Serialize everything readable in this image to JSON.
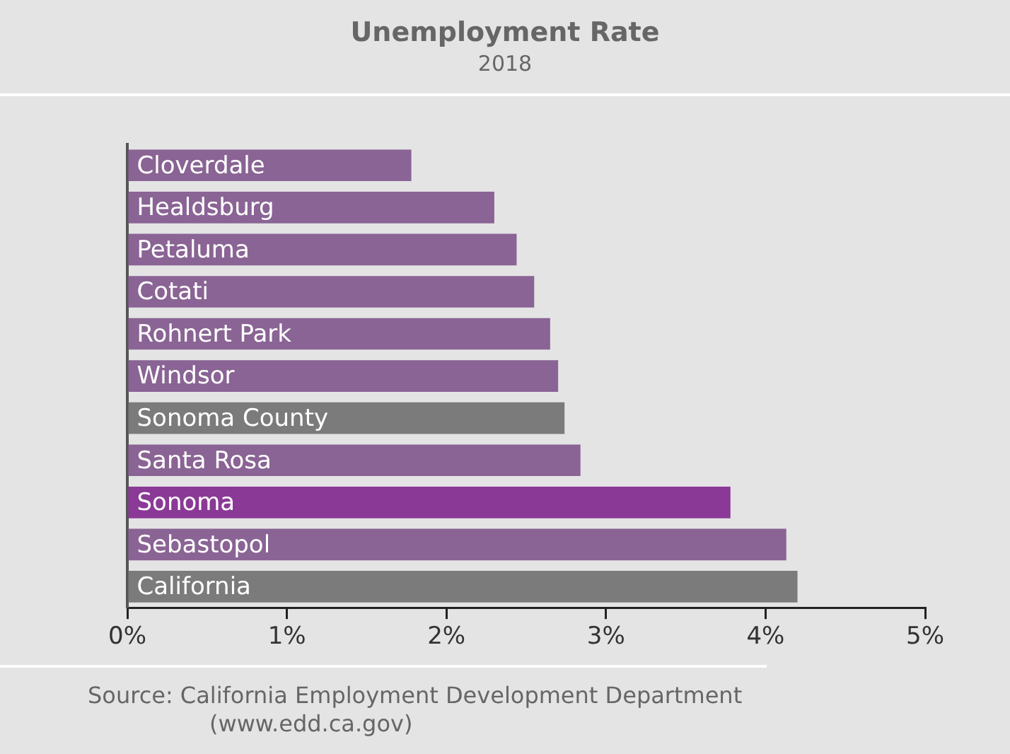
{
  "chart_data": {
    "type": "bar",
    "title": "Unemployment Rate",
    "subtitle": "2018",
    "orientation": "horizontal",
    "categories": [
      "Cloverdale",
      "Healdsburg",
      "Petaluma",
      "Cotati",
      "Rohnert Park",
      "Windsor",
      "Sonoma County",
      "Santa Rosa",
      "Sonoma",
      "Sebastopol",
      "California"
    ],
    "values": [
      1.78,
      2.3,
      2.44,
      2.55,
      2.65,
      2.7,
      2.74,
      2.84,
      3.78,
      4.13,
      4.2
    ],
    "colors": [
      "#8a6494",
      "#8a6494",
      "#8a6494",
      "#8a6494",
      "#8a6494",
      "#8a6494",
      "#7b7b7b",
      "#8a6494",
      "#8a3a96",
      "#8a6494",
      "#7b7b7b"
    ],
    "xlim": [
      0,
      5
    ],
    "xticks": [
      {
        "value": 0,
        "label": "0%"
      },
      {
        "value": 1,
        "label": "1%"
      },
      {
        "value": 2,
        "label": "2%"
      },
      {
        "value": 3,
        "label": "3%"
      },
      {
        "value": 4,
        "label": "4%"
      },
      {
        "value": 5,
        "label": "5%"
      }
    ],
    "grid": false,
    "legend": false,
    "annotations": [
      "Source: California Employment Development Department (www.edd.ca.gov)"
    ]
  }
}
